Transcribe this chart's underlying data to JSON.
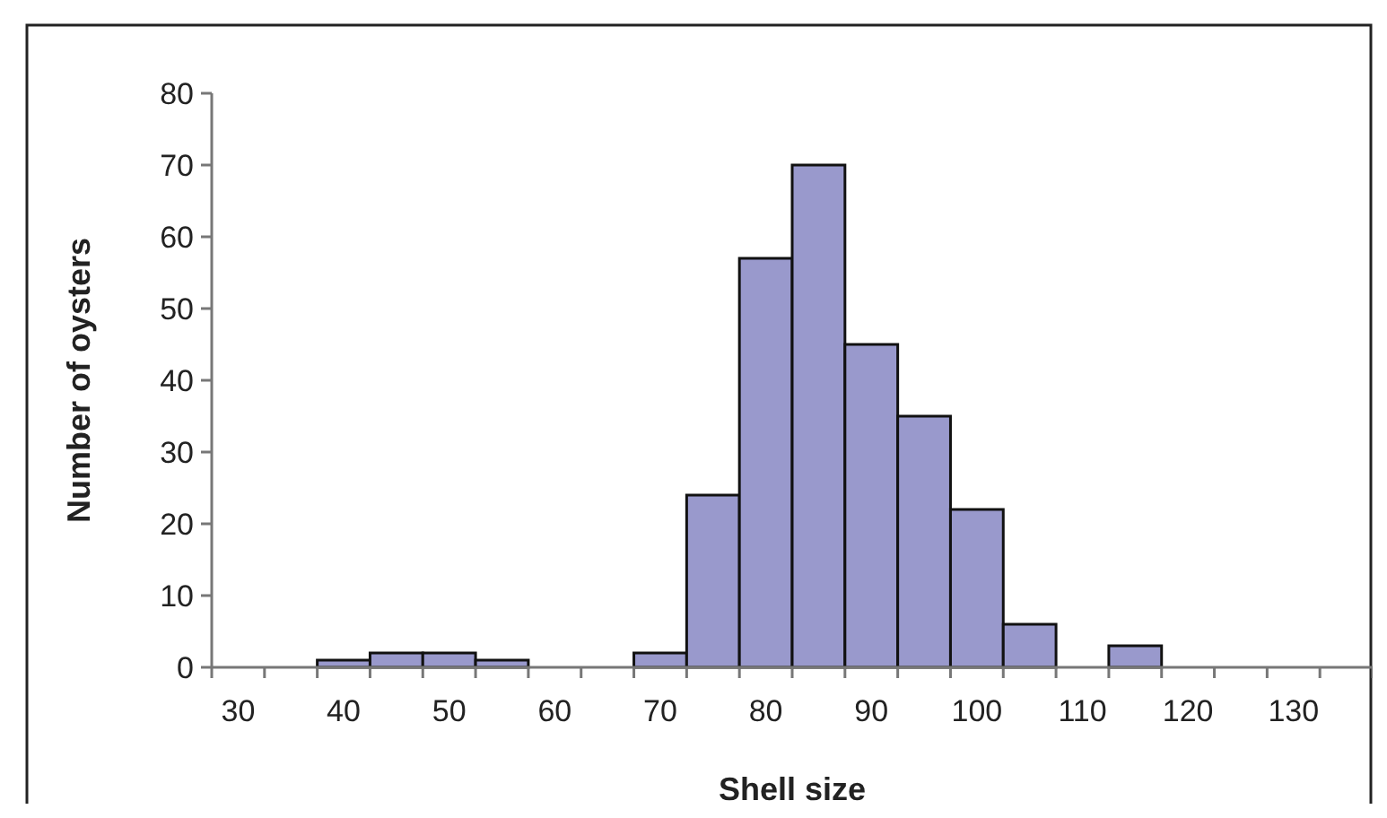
{
  "chart_data": {
    "type": "bar",
    "xlabel": "Shell size",
    "ylabel": "Number of oysters",
    "categories": [
      "30",
      null,
      "40",
      null,
      "50",
      null,
      "60",
      null,
      "70",
      null,
      "80",
      null,
      "90",
      null,
      "100",
      null,
      "110",
      null,
      "120",
      null,
      "130",
      null
    ],
    "values": [
      0,
      0,
      1,
      2,
      2,
      1,
      0,
      0,
      2,
      24,
      57,
      70,
      45,
      35,
      22,
      6,
      0,
      3,
      0,
      0,
      0,
      0
    ],
    "color": "#9999cc",
    "ylim": [
      0,
      80
    ],
    "yticks": [
      0,
      10,
      20,
      30,
      40,
      50,
      60,
      70,
      80
    ],
    "grid": false
  }
}
